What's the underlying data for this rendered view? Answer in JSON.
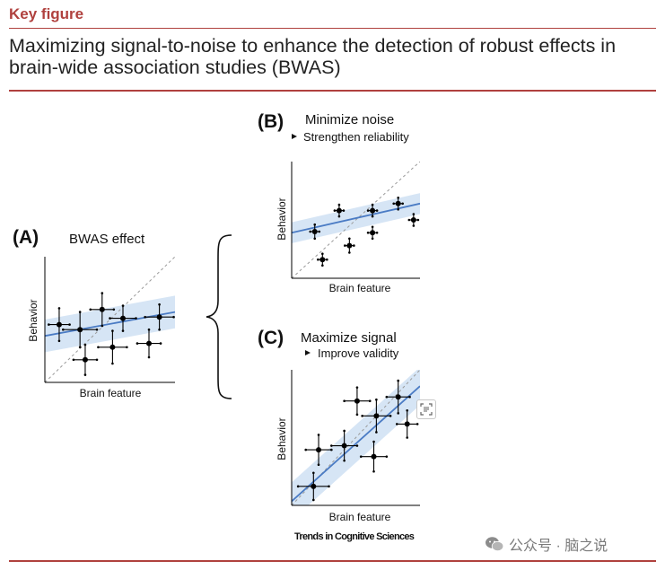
{
  "header": {
    "kicker": "Key figure",
    "title": "Maximizing signal-to-noise to enhance the detection of robust effects in brain-wide association studies (BWAS)"
  },
  "panels": {
    "A": {
      "letter": "(A)",
      "heading": "BWAS effect",
      "xlabel": "Brain feature",
      "ylabel": "Behavior"
    },
    "B": {
      "letter": "(B)",
      "heading": "Minimize noise",
      "bullet": "Strengthen reliability",
      "xlabel": "Brain feature",
      "ylabel": "Behavior"
    },
    "C": {
      "letter": "(C)",
      "heading": "Maximize signal",
      "bullet": "Improve validity",
      "xlabel": "Brain feature",
      "ylabel": "Behavior"
    }
  },
  "journal": "Trends in Cognitive Sciences",
  "watermark": "公众号 · 脑之说",
  "colors": {
    "accent": "#b0413e",
    "fit_line": "#4a7bc4",
    "band": "#cfe0f3",
    "point": "#000000"
  },
  "icons": {
    "bracket": "curly-brace-icon",
    "bullet": "triangle-bullet-icon",
    "scan": "scan-text-icon",
    "watermark": "wechat-icon"
  },
  "chart_data": [
    {
      "panel": "A",
      "type": "scatter",
      "xlabel": "Brain feature",
      "ylabel": "Behavior",
      "xlim": [
        0,
        1
      ],
      "ylim": [
        0,
        1
      ],
      "fit": {
        "y0": 0.37,
        "y1": 0.56
      },
      "band_halfwidth": 0.13,
      "identity_line": true,
      "points": [
        {
          "x": 0.11,
          "y": 0.46,
          "xerr": 0.08,
          "yerr": 0.13
        },
        {
          "x": 0.27,
          "y": 0.42,
          "xerr": 0.13,
          "yerr": 0.14
        },
        {
          "x": 0.31,
          "y": 0.18,
          "xerr": 0.09,
          "yerr": 0.12
        },
        {
          "x": 0.44,
          "y": 0.58,
          "xerr": 0.09,
          "yerr": 0.13
        },
        {
          "x": 0.52,
          "y": 0.28,
          "xerr": 0.11,
          "yerr": 0.13
        },
        {
          "x": 0.6,
          "y": 0.51,
          "xerr": 0.1,
          "yerr": 0.1
        },
        {
          "x": 0.8,
          "y": 0.31,
          "xerr": 0.09,
          "yerr": 0.11
        },
        {
          "x": 0.88,
          "y": 0.52,
          "xerr": 0.11,
          "yerr": 0.1
        }
      ]
    },
    {
      "panel": "B",
      "type": "scatter",
      "xlabel": "Brain feature",
      "ylabel": "Behavior",
      "xlim": [
        0,
        1
      ],
      "ylim": [
        0,
        1
      ],
      "fit": {
        "y0": 0.39,
        "y1": 0.64
      },
      "band_halfwidth": 0.09,
      "identity_line": true,
      "points": [
        {
          "x": 0.18,
          "y": 0.4,
          "xerr": 0.035,
          "yerr": 0.06
        },
        {
          "x": 0.24,
          "y": 0.16,
          "xerr": 0.035,
          "yerr": 0.05
        },
        {
          "x": 0.37,
          "y": 0.58,
          "xerr": 0.035,
          "yerr": 0.05
        },
        {
          "x": 0.45,
          "y": 0.28,
          "xerr": 0.035,
          "yerr": 0.06
        },
        {
          "x": 0.63,
          "y": 0.58,
          "xerr": 0.035,
          "yerr": 0.05
        },
        {
          "x": 0.63,
          "y": 0.39,
          "xerr": 0.035,
          "yerr": 0.05
        },
        {
          "x": 0.83,
          "y": 0.64,
          "xerr": 0.035,
          "yerr": 0.05
        },
        {
          "x": 0.95,
          "y": 0.5,
          "xerr": 0.035,
          "yerr": 0.05
        }
      ]
    },
    {
      "panel": "C",
      "type": "scatter",
      "xlabel": "Brain feature",
      "ylabel": "Behavior",
      "xlim": [
        0,
        1
      ],
      "ylim": [
        0,
        1
      ],
      "fit": {
        "y0": 0.03,
        "y1": 0.88
      },
      "band_halfwidth": 0.14,
      "identity_line": true,
      "points": [
        {
          "x": 0.17,
          "y": 0.14,
          "xerr": 0.12,
          "yerr": 0.1
        },
        {
          "x": 0.21,
          "y": 0.41,
          "xerr": 0.1,
          "yerr": 0.11
        },
        {
          "x": 0.41,
          "y": 0.44,
          "xerr": 0.1,
          "yerr": 0.11
        },
        {
          "x": 0.51,
          "y": 0.77,
          "xerr": 0.1,
          "yerr": 0.1
        },
        {
          "x": 0.64,
          "y": 0.36,
          "xerr": 0.1,
          "yerr": 0.11
        },
        {
          "x": 0.66,
          "y": 0.66,
          "xerr": 0.11,
          "yerr": 0.12
        },
        {
          "x": 0.83,
          "y": 0.8,
          "xerr": 0.09,
          "yerr": 0.12
        },
        {
          "x": 0.9,
          "y": 0.6,
          "xerr": 0.08,
          "yerr": 0.1
        }
      ]
    }
  ]
}
